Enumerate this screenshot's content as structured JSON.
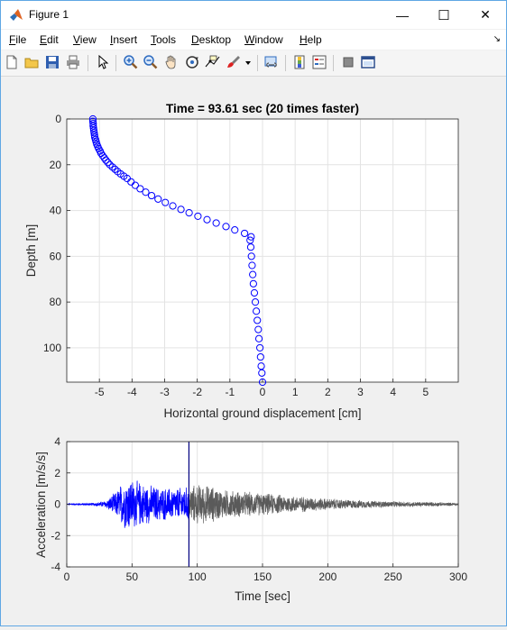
{
  "window": {
    "title": "Figure 1",
    "controls": {
      "minimize": "—",
      "maximize": "☐",
      "close": "✕"
    }
  },
  "menu": {
    "items": [
      {
        "name": "menu-file",
        "underline": "F",
        "rest": "ile"
      },
      {
        "name": "menu-edit",
        "underline": "E",
        "rest": "dit"
      },
      {
        "name": "menu-view",
        "underline": "V",
        "rest": "iew"
      },
      {
        "name": "menu-insert",
        "underline": "I",
        "rest": "nsert"
      },
      {
        "name": "menu-tools",
        "underline": "T",
        "rest": "ools"
      },
      {
        "name": "menu-desktop",
        "underline": "D",
        "rest": "esktop"
      },
      {
        "name": "menu-window",
        "underline": "W",
        "rest": "indow"
      },
      {
        "name": "menu-help",
        "underline": "H",
        "rest": "elp"
      }
    ],
    "corner_arrow": "↘"
  },
  "toolbar": {
    "buttons": [
      "new-figure-icon",
      "open-file-icon",
      "save-icon",
      "print-icon",
      "pointer-icon",
      "zoom-in-icon",
      "zoom-out-icon",
      "pan-icon",
      "rotate-3d-icon",
      "data-cursor-icon",
      "brush-icon",
      "brush-dropdown-icon",
      "link-plot-icon",
      "colorbar-icon",
      "legend-icon",
      "hide-plot-tools-icon",
      "show-plot-tools-icon"
    ]
  },
  "colors": {
    "profile_marker": "#0000ff",
    "accel_played": "#0000ff",
    "accel_remaining": "#5a5a5a",
    "time_cursor": "#000080"
  },
  "top_plot": {
    "title": "Time = 93.61 sec (20 times faster)",
    "xlabel": "Horizontal ground displacement [cm]",
    "ylabel": "Depth [m]"
  },
  "bottom_plot": {
    "xlabel": "Time [sec]",
    "ylabel": "Acceleration [m/s/s]"
  },
  "chart_data": [
    {
      "type": "scatter",
      "title": "Time = 93.61 sec (20 times faster)",
      "xlabel": "Horizontal ground displacement [cm]",
      "ylabel": "Depth [m]",
      "xlim": [
        -6,
        6
      ],
      "ylim": [
        115,
        0
      ],
      "y_reversed": true,
      "xticks": [
        -5,
        -4,
        -3,
        -2,
        -1,
        0,
        1,
        2,
        3,
        4,
        5
      ],
      "yticks": [
        0,
        20,
        40,
        60,
        80,
        100
      ],
      "grid": true,
      "marker": "circle",
      "points": [
        {
          "x": -5.2,
          "y": 0
        },
        {
          "x": -5.2,
          "y": 1
        },
        {
          "x": -5.19,
          "y": 2
        },
        {
          "x": -5.19,
          "y": 3
        },
        {
          "x": -5.18,
          "y": 4
        },
        {
          "x": -5.17,
          "y": 5
        },
        {
          "x": -5.16,
          "y": 6
        },
        {
          "x": -5.15,
          "y": 7
        },
        {
          "x": -5.14,
          "y": 8
        },
        {
          "x": -5.12,
          "y": 9
        },
        {
          "x": -5.1,
          "y": 10
        },
        {
          "x": -5.08,
          "y": 11
        },
        {
          "x": -5.05,
          "y": 12
        },
        {
          "x": -5.02,
          "y": 13
        },
        {
          "x": -4.98,
          "y": 14
        },
        {
          "x": -4.95,
          "y": 15
        },
        {
          "x": -4.9,
          "y": 16
        },
        {
          "x": -4.85,
          "y": 17
        },
        {
          "x": -4.8,
          "y": 18
        },
        {
          "x": -4.74,
          "y": 19
        },
        {
          "x": -4.68,
          "y": 20
        },
        {
          "x": -4.6,
          "y": 21
        },
        {
          "x": -4.52,
          "y": 22
        },
        {
          "x": -4.44,
          "y": 23
        },
        {
          "x": -4.35,
          "y": 24
        },
        {
          "x": -4.25,
          "y": 25
        },
        {
          "x": -4.15,
          "y": 26
        },
        {
          "x": -4.03,
          "y": 27.5
        },
        {
          "x": -3.9,
          "y": 29
        },
        {
          "x": -3.75,
          "y": 30.5
        },
        {
          "x": -3.58,
          "y": 32
        },
        {
          "x": -3.4,
          "y": 33.5
        },
        {
          "x": -3.2,
          "y": 35
        },
        {
          "x": -2.98,
          "y": 36.5
        },
        {
          "x": -2.75,
          "y": 38
        },
        {
          "x": -2.5,
          "y": 39.5
        },
        {
          "x": -2.25,
          "y": 41
        },
        {
          "x": -1.98,
          "y": 42.5
        },
        {
          "x": -1.7,
          "y": 44
        },
        {
          "x": -1.42,
          "y": 45.5
        },
        {
          "x": -1.12,
          "y": 47
        },
        {
          "x": -0.85,
          "y": 48.5
        },
        {
          "x": -0.55,
          "y": 50
        },
        {
          "x": -0.35,
          "y": 51.5
        },
        {
          "x": -0.38,
          "y": 53
        },
        {
          "x": -0.36,
          "y": 56
        },
        {
          "x": -0.34,
          "y": 60
        },
        {
          "x": -0.32,
          "y": 64
        },
        {
          "x": -0.3,
          "y": 68
        },
        {
          "x": -0.28,
          "y": 72
        },
        {
          "x": -0.25,
          "y": 76
        },
        {
          "x": -0.22,
          "y": 80
        },
        {
          "x": -0.19,
          "y": 84
        },
        {
          "x": -0.16,
          "y": 88
        },
        {
          "x": -0.13,
          "y": 92
        },
        {
          "x": -0.11,
          "y": 96
        },
        {
          "x": -0.08,
          "y": 100
        },
        {
          "x": -0.06,
          "y": 104
        },
        {
          "x": -0.04,
          "y": 108
        },
        {
          "x": -0.02,
          "y": 111
        },
        {
          "x": 0,
          "y": 115
        }
      ]
    },
    {
      "type": "line",
      "xlabel": "Time [sec]",
      "ylabel": "Acceleration [m/s/s]",
      "xlim": [
        0,
        300
      ],
      "ylim": [
        -4,
        4
      ],
      "xticks": [
        0,
        50,
        100,
        150,
        200,
        250,
        300
      ],
      "yticks": [
        -4,
        -2,
        0,
        2,
        4
      ],
      "grid": true,
      "current_time": 93.61,
      "series": [
        {
          "part": "played",
          "envelope": [
            [
              0,
              0.05
            ],
            [
              20,
              0.1
            ],
            [
              30,
              0.25
            ],
            [
              38,
              0.9
            ],
            [
              42,
              1.5
            ],
            [
              47,
              1.9
            ],
            [
              52,
              1.7
            ],
            [
              60,
              1.4
            ],
            [
              70,
              1.2
            ],
            [
              80,
              1.1
            ],
            [
              93.61,
              1.2
            ]
          ]
        },
        {
          "part": "remaining",
          "envelope": [
            [
              93.61,
              1.2
            ],
            [
              100,
              1.4
            ],
            [
              110,
              1.3
            ],
            [
              120,
              1.0
            ],
            [
              140,
              0.85
            ],
            [
              160,
              0.7
            ],
            [
              180,
              0.55
            ],
            [
              200,
              0.4
            ],
            [
              220,
              0.3
            ],
            [
              250,
              0.2
            ],
            [
              280,
              0.15
            ],
            [
              300,
              0.1
            ]
          ]
        }
      ]
    }
  ]
}
